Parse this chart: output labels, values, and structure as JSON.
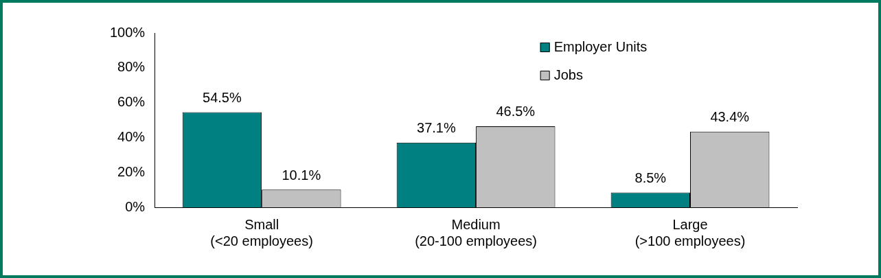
{
  "chart_data": {
    "type": "bar",
    "categories": [
      "Small\n(<20 employees)",
      "Medium\n(20-100 employees)",
      "Large\n(>100 employees)"
    ],
    "series": [
      {
        "name": "Employer Units",
        "color": "#008080",
        "values": [
          54.5,
          37.1,
          8.5
        ],
        "value_labels": [
          "54.5%",
          "37.1%",
          "8.5%"
        ]
      },
      {
        "name": "Jobs",
        "color": "#c0c0c0",
        "values": [
          10.1,
          46.5,
          43.4
        ],
        "value_labels": [
          "10.1%",
          "46.5%",
          "43.4%"
        ]
      }
    ],
    "ylim": [
      0,
      100
    ],
    "yticks": [
      {
        "value": 0,
        "label": "0%"
      },
      {
        "value": 20,
        "label": "20%"
      },
      {
        "value": 40,
        "label": "40%"
      },
      {
        "value": 60,
        "label": "60%"
      },
      {
        "value": 80,
        "label": "80%"
      },
      {
        "value": 100,
        "label": "100%"
      }
    ],
    "grid": false,
    "legend": "top right"
  }
}
